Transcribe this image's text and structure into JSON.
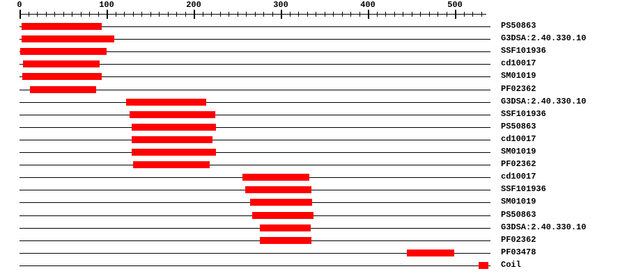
{
  "chart_data": {
    "type": "bar",
    "variant": "protein-domain-architecture",
    "title": "",
    "axis": {
      "min": 0,
      "max": 536,
      "tick_end": 530,
      "major_step": 100,
      "minor_step": 10,
      "tick_labels": [
        "0",
        "100",
        "200",
        "300",
        "400",
        "500"
      ]
    },
    "row_line_extent": 541,
    "rows": [
      {
        "label": "PS50863",
        "start": 2,
        "end": 94
      },
      {
        "label": "G3DSA:2.40.330.10",
        "start": 2,
        "end": 108
      },
      {
        "label": "SSF101936",
        "start": 1,
        "end": 100
      },
      {
        "label": "cd10017",
        "start": 4,
        "end": 92
      },
      {
        "label": "SM01019",
        "start": 3,
        "end": 94
      },
      {
        "label": "PF02362",
        "start": 12,
        "end": 88
      },
      {
        "label": "G3DSA:2.40.330.10",
        "start": 122,
        "end": 214
      },
      {
        "label": "SSF101936",
        "start": 126,
        "end": 224
      },
      {
        "label": "PS50863",
        "start": 129,
        "end": 226
      },
      {
        "label": "cd10017",
        "start": 129,
        "end": 222
      },
      {
        "label": "SM01019",
        "start": 129,
        "end": 226
      },
      {
        "label": "PF02362",
        "start": 130,
        "end": 218
      },
      {
        "label": "cd10017",
        "start": 256,
        "end": 333
      },
      {
        "label": "SSF101936",
        "start": 259,
        "end": 335
      },
      {
        "label": "SM01019",
        "start": 265,
        "end": 336
      },
      {
        "label": "PS50863",
        "start": 267,
        "end": 337
      },
      {
        "label": "G3DSA:2.40.330.10",
        "start": 276,
        "end": 334
      },
      {
        "label": "PF02362",
        "start": 276,
        "end": 335
      },
      {
        "label": "PF03478",
        "start": 445,
        "end": 499
      },
      {
        "label": "Coil",
        "start": 527,
        "end": 538
      }
    ],
    "colors": {
      "bar": "#FF0000",
      "line": "#000000",
      "text": "#000000",
      "background": "#FFFFFF"
    },
    "legend_position": "right-labels",
    "grid": false
  }
}
